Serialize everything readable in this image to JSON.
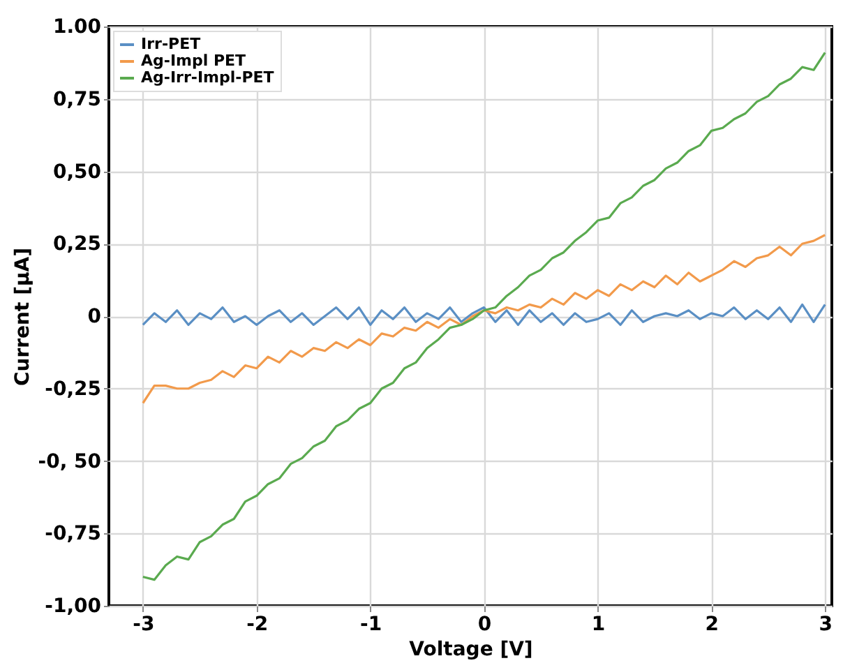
{
  "chart_data": {
    "type": "line",
    "xlabel": "Voltage [V]",
    "ylabel": "Current [µA]",
    "x": [
      -3.0,
      -2.9,
      -2.8,
      -2.7,
      -2.6,
      -2.5,
      -2.4,
      -2.3,
      -2.2,
      -2.1,
      -2.0,
      -1.9,
      -1.8,
      -1.7,
      -1.6,
      -1.5,
      -1.4,
      -1.3,
      -1.2,
      -1.1,
      -1.0,
      -0.9,
      -0.8,
      -0.7,
      -0.6,
      -0.5,
      -0.4,
      -0.3,
      -0.2,
      -0.1,
      0.0,
      0.1,
      0.2,
      0.3,
      0.4,
      0.5,
      0.6,
      0.7,
      0.8,
      0.9,
      1.0,
      1.1,
      1.2,
      1.3,
      1.4,
      1.5,
      1.6,
      1.7,
      1.8,
      1.9,
      2.0,
      2.1,
      2.2,
      2.3,
      2.4,
      2.5,
      2.6,
      2.7,
      2.8,
      2.9,
      3.0
    ],
    "series": [
      {
        "name": "Irr-PET",
        "color": "#5a8fc4",
        "values": [
          -0.03,
          0.01,
          -0.02,
          0.02,
          -0.03,
          0.01,
          -0.01,
          0.03,
          -0.02,
          0.0,
          -0.03,
          0.0,
          0.02,
          -0.02,
          0.01,
          -0.03,
          0.0,
          0.03,
          -0.01,
          0.03,
          -0.03,
          0.02,
          -0.01,
          0.03,
          -0.02,
          0.01,
          -0.01,
          0.03,
          -0.02,
          0.01,
          0.03,
          -0.02,
          0.02,
          -0.03,
          0.02,
          -0.02,
          0.01,
          -0.03,
          0.01,
          -0.02,
          -0.01,
          0.01,
          -0.03,
          0.02,
          -0.02,
          0.0,
          0.01,
          0.0,
          0.02,
          -0.01,
          0.01,
          0.0,
          0.03,
          -0.01,
          0.02,
          -0.01,
          0.03,
          -0.02,
          0.04,
          -0.02,
          0.04
        ]
      },
      {
        "name": "Ag-Impl PET",
        "color": "#f29a4b",
        "values": [
          -0.3,
          -0.24,
          -0.24,
          -0.25,
          -0.25,
          -0.23,
          -0.22,
          -0.19,
          -0.21,
          -0.17,
          -0.18,
          -0.14,
          -0.16,
          -0.12,
          -0.14,
          -0.11,
          -0.12,
          -0.09,
          -0.11,
          -0.08,
          -0.1,
          -0.06,
          -0.07,
          -0.04,
          -0.05,
          -0.02,
          -0.04,
          -0.01,
          -0.03,
          0.0,
          0.02,
          0.01,
          0.03,
          0.02,
          0.04,
          0.03,
          0.06,
          0.04,
          0.08,
          0.06,
          0.09,
          0.07,
          0.11,
          0.09,
          0.12,
          0.1,
          0.14,
          0.11,
          0.15,
          0.12,
          0.14,
          0.16,
          0.19,
          0.17,
          0.2,
          0.21,
          0.24,
          0.21,
          0.25,
          0.26,
          0.28
        ]
      },
      {
        "name": "Ag-Irr-Impl-PET",
        "color": "#5aaa4f",
        "values": [
          -0.9,
          -0.91,
          -0.86,
          -0.83,
          -0.84,
          -0.78,
          -0.76,
          -0.72,
          -0.7,
          -0.64,
          -0.62,
          -0.58,
          -0.56,
          -0.51,
          -0.49,
          -0.45,
          -0.43,
          -0.38,
          -0.36,
          -0.32,
          -0.3,
          -0.25,
          -0.23,
          -0.18,
          -0.16,
          -0.11,
          -0.08,
          -0.04,
          -0.03,
          -0.01,
          0.02,
          0.03,
          0.07,
          0.1,
          0.14,
          0.16,
          0.2,
          0.22,
          0.26,
          0.29,
          0.33,
          0.34,
          0.39,
          0.41,
          0.45,
          0.47,
          0.51,
          0.53,
          0.57,
          0.59,
          0.64,
          0.65,
          0.68,
          0.7,
          0.74,
          0.76,
          0.8,
          0.82,
          0.86,
          0.85,
          0.91
        ]
      }
    ],
    "xlim": [
      -3.3,
      3.06
    ],
    "xticks": [
      -3,
      -2,
      -1,
      0,
      1,
      2,
      3
    ],
    "ylim": [
      -1.0,
      1.0
    ],
    "yticks": [
      {
        "value": -1.0,
        "label": "-1,00"
      },
      {
        "value": -0.75,
        "label": "-0,75"
      },
      {
        "value": -0.5,
        "label": "-0, 50"
      },
      {
        "value": -0.25,
        "label": "-0,25"
      },
      0,
      {
        "value": 0.25,
        "label": "0,25"
      },
      {
        "value": 0.5,
        "label": "0,50"
      },
      {
        "value": 0.75,
        "label": "0,75"
      },
      {
        "value": 1.0,
        "label": "1.00"
      }
    ],
    "grid": true,
    "legend": "top left",
    "line_style": "solid",
    "marker": "none"
  }
}
